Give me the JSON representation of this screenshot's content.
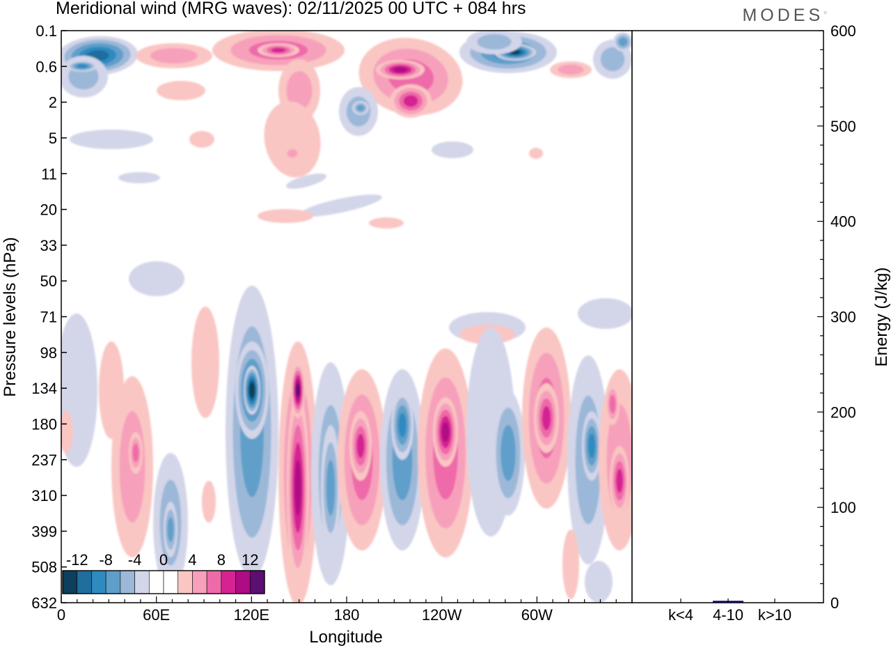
{
  "header": {
    "title": "Meridional wind (MRG waves):  02/11/2025  00 UTC  + 084 hrs",
    "brand": "MODES"
  },
  "chart_data": [
    {
      "type": "heatmap",
      "title": "Meridional wind (MRG waves):  02/11/2025  00 UTC  + 084 hrs",
      "xlabel": "Longitude",
      "ylabel": "Pressure levels (hPa)",
      "x_ticks": [
        "0",
        "60E",
        "120E",
        "180",
        "120W",
        "60W"
      ],
      "x_tick_degrees": [
        0,
        60,
        120,
        180,
        240,
        300
      ],
      "x_range": [
        0,
        360
      ],
      "y_ticks": [
        "0.1",
        "0.6",
        "2",
        "5",
        "11",
        "20",
        "33",
        "50",
        "71",
        "98",
        "134",
        "180",
        "237",
        "310",
        "399",
        "508",
        "632"
      ],
      "colorbar": {
        "labels": [
          "-12",
          "-8",
          "-4",
          "0",
          "4",
          "8",
          "12"
        ],
        "levels": [
          -14,
          -12,
          -10,
          -8,
          -6,
          -4,
          -2,
          0,
          2,
          4,
          6,
          8,
          10,
          12,
          14
        ],
        "colors": [
          "#0e3f5c",
          "#1f6e9e",
          "#2f8ac0",
          "#5e9fc9",
          "#9bb8d8",
          "#d3d5e9",
          "#ffffff",
          "#ffffff",
          "#f9c6c3",
          "#f7a0bb",
          "#ee6aa8",
          "#d52392",
          "#ae0b84",
          "#5d0e72"
        ]
      }
    },
    {
      "type": "bar",
      "ylabel": "Energy (J/kg)",
      "ylim": [
        0,
        600
      ],
      "y_ticks": [
        "0",
        "100",
        "200",
        "300",
        "400",
        "500",
        "600"
      ],
      "categories": [
        "k<4",
        "4-10",
        "k>10"
      ],
      "values": [
        0,
        2,
        0
      ],
      "bar_color": "#0b0b5e"
    }
  ]
}
